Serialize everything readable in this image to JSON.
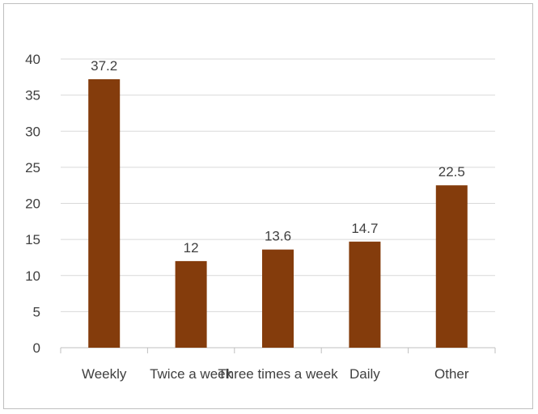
{
  "chart_data": {
    "type": "bar",
    "categories": [
      "Weekly",
      "Twice a week",
      "Three times a week",
      "Daily",
      "Other"
    ],
    "values": [
      37.2,
      12,
      13.6,
      14.7,
      22.5
    ],
    "data_labels": [
      "37.2",
      "12",
      "13.6",
      "14.7",
      "22.5"
    ],
    "title": "",
    "xlabel": "",
    "ylabel": "",
    "ylim": [
      0,
      40
    ],
    "yticks": [
      "0",
      "5",
      "10",
      "15",
      "20",
      "25",
      "30",
      "35",
      "40"
    ],
    "grid": true,
    "legend": "none",
    "bar_color": "#843c0c",
    "grid_color": "#d9d9d9",
    "axis_color": "#bfbfbf"
  }
}
